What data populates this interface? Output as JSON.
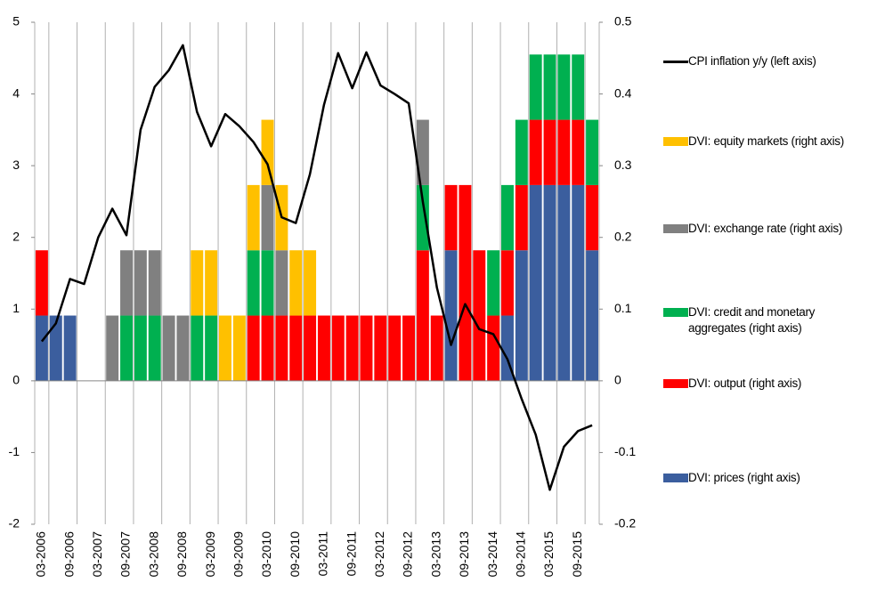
{
  "chart_data": {
    "type": "bar",
    "stacked": true,
    "legend": "right",
    "xgrid": true,
    "categories": [
      "03-2006",
      null,
      "09-2006",
      null,
      "03-2007",
      null,
      "09-2007",
      null,
      "03-2008",
      null,
      "09-2008",
      null,
      "03-2009",
      null,
      "09-2009",
      null,
      "03-2010",
      null,
      "09-2010",
      null,
      "03-2011",
      null,
      "09-2011",
      null,
      "03-2012",
      null,
      "09-2012",
      null,
      "03-2013",
      null,
      "09-2013",
      null,
      "03-2014",
      null,
      "09-2014",
      null,
      "03-2015",
      null,
      "09-2015",
      null
    ],
    "ylim": [
      -2,
      5
    ],
    "yticks": [
      -2,
      -1,
      0,
      1,
      2,
      3,
      4,
      5
    ],
    "y2lim": [
      -0.2,
      0.5
    ],
    "y2ticks": [
      -0.2,
      -0.1,
      0,
      0.1,
      0.2,
      0.3,
      0.4,
      0.5
    ],
    "series": [
      {
        "name": "DVI: prices (right axis)",
        "color": "#3b5e9e",
        "axis": "y2",
        "values": [
          0.091,
          0.091,
          0.091,
          0,
          0,
          0,
          0,
          0,
          0,
          0,
          0,
          0,
          0,
          0,
          0,
          0,
          0,
          0,
          0,
          0,
          0,
          0,
          0,
          0,
          0,
          0,
          0,
          0,
          0,
          0.182,
          0,
          0,
          0,
          0.091,
          0.182,
          0.273,
          0.273,
          0.273,
          0.273,
          0.182
        ]
      },
      {
        "name": "DVI: output (right axis)",
        "color": "#ff0000",
        "axis": "y2",
        "values": [
          0.091,
          0,
          0,
          0,
          0,
          0,
          0,
          0,
          0,
          0,
          0,
          0,
          0,
          0,
          0,
          0.091,
          0.091,
          0.091,
          0.091,
          0.091,
          0.091,
          0.091,
          0.091,
          0.091,
          0.091,
          0.091,
          0.091,
          0.182,
          0.091,
          0.091,
          0.273,
          0.182,
          0.091,
          0.091,
          0.091,
          0.091,
          0.091,
          0.091,
          0.091,
          0.091
        ]
      },
      {
        "name": "DVI: credit and monetary aggregates (right axis)",
        "color": "#00b050",
        "axis": "y2",
        "values": [
          0,
          0,
          0,
          0,
          0,
          0,
          0.091,
          0.091,
          0.091,
          0,
          0,
          0.091,
          0.091,
          0,
          0,
          0.091,
          0.091,
          0,
          0,
          0,
          0,
          0,
          0,
          0,
          0,
          0,
          0,
          0.091,
          0,
          0,
          0,
          0,
          0.091,
          0.091,
          0.091,
          0.091,
          0.091,
          0.091,
          0.091,
          0.091
        ]
      },
      {
        "name": "DVI: exchange rate (right axis)",
        "color": "#808080",
        "axis": "y2",
        "values": [
          0,
          0,
          0,
          0,
          0,
          0.091,
          0.091,
          0.091,
          0.091,
          0.091,
          0.091,
          0,
          0,
          0,
          0,
          0,
          0.091,
          0.091,
          0,
          0,
          0,
          0,
          0,
          0,
          0,
          0,
          0,
          0.091,
          0,
          0,
          0,
          0,
          0,
          0,
          0,
          0,
          0,
          0,
          0,
          0
        ]
      },
      {
        "name": "DVI: equity markets (right axis)",
        "color": "#ffc000",
        "axis": "y2",
        "values": [
          0,
          0,
          0,
          0,
          0,
          0,
          0,
          0,
          0,
          0,
          0,
          0.091,
          0.091,
          0.091,
          0.091,
          0.091,
          0.091,
          0.091,
          0.091,
          0.091,
          0,
          0,
          0,
          0,
          0,
          0,
          0,
          0,
          0,
          0,
          0,
          0,
          0,
          0,
          0,
          0,
          0,
          0,
          0,
          0
        ]
      },
      {
        "name": "CPI inflation y/y (left axis)",
        "type": "line",
        "color": "#000000",
        "axis": "y",
        "values": [
          0.55,
          0.8,
          1.42,
          1.35,
          2.0,
          2.4,
          2.03,
          3.5,
          4.1,
          4.33,
          4.68,
          3.75,
          3.27,
          3.72,
          3.55,
          3.33,
          3.02,
          2.28,
          2.2,
          2.88,
          3.85,
          4.57,
          4.08,
          4.58,
          4.12,
          4.0,
          3.87,
          2.5,
          1.3,
          0.5,
          1.07,
          0.72,
          0.65,
          0.3,
          -0.25,
          -0.75,
          -1.52,
          -0.92,
          -0.7,
          -0.62
        ]
      }
    ]
  }
}
